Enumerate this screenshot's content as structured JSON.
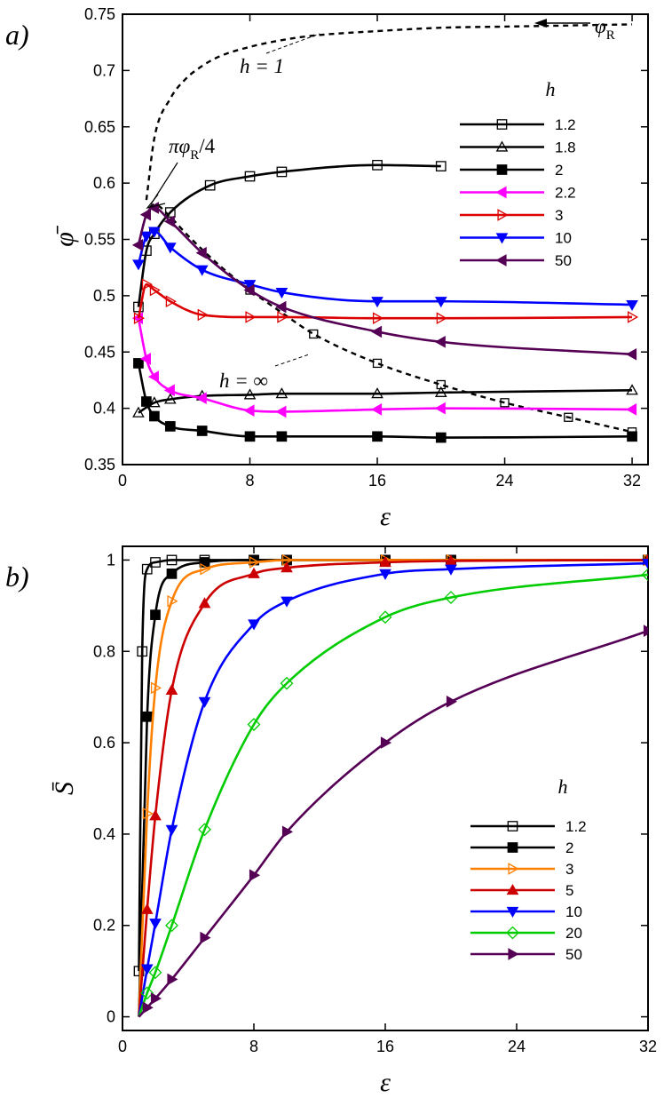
{
  "chart_data": [
    {
      "type": "line",
      "panel_label": "a)",
      "xlabel": "ε",
      "ylabel": "φ̄",
      "xlim": [
        0,
        33
      ],
      "ylim": [
        0.35,
        0.75
      ],
      "xticks": [
        0,
        8,
        16,
        24,
        32
      ],
      "xtick_labels": [
        "0",
        "8",
        "16",
        "24",
        "32"
      ],
      "yticks": [
        0.35,
        0.4,
        0.45,
        0.5,
        0.55,
        0.6,
        0.65,
        0.7,
        0.75
      ],
      "ytick_labels": [
        "0.35",
        "0.4",
        "0.45",
        "0.5",
        "0.55",
        "0.6",
        "0.65",
        "0.7",
        "0.75"
      ],
      "legend_title": "h",
      "legend_position": "top-right",
      "annotations": {
        "phi_r": "φ",
        "phi_r_sub": "R",
        "h_one": "h = 1",
        "h_inf": "h = ∞",
        "pi_phi_r": "πφ",
        "pi_phi_r_sub": "R",
        "pi_phi_r_tail": "/4"
      },
      "reference_curves": [
        {
          "name": "h=1",
          "style": "dashed",
          "x": [
            1.5,
            2,
            3,
            4,
            5,
            6,
            8,
            10,
            12,
            16,
            20,
            24,
            28,
            32
          ],
          "y": [
            0.585,
            0.64,
            0.675,
            0.693,
            0.704,
            0.712,
            0.721,
            0.727,
            0.731,
            0.735,
            0.738,
            0.739,
            0.74,
            0.741
          ]
        },
        {
          "name": "h=∞",
          "style": "dashed",
          "x": [
            1,
            1.5,
            2,
            3,
            4,
            6,
            8,
            10,
            12,
            16,
            20,
            24,
            28,
            32
          ],
          "y": [
            0.545,
            0.572,
            0.581,
            0.57,
            0.555,
            0.528,
            0.505,
            0.485,
            0.466,
            0.44,
            0.421,
            0.405,
            0.392,
            0.379
          ]
        }
      ],
      "series": [
        {
          "name": "1.2",
          "color": "#000000",
          "marker": "square-open",
          "x": [
            1,
            1.5,
            2,
            3,
            5.5,
            8,
            10,
            16,
            20
          ],
          "y": [
            0.49,
            0.54,
            0.555,
            0.574,
            0.598,
            0.606,
            0.61,
            0.616,
            0.615
          ]
        },
        {
          "name": "1.8",
          "color": "#000000",
          "marker": "triangle-open",
          "x": [
            1,
            2,
            3,
            5,
            8,
            10,
            16,
            20,
            32
          ],
          "y": [
            0.396,
            0.405,
            0.408,
            0.411,
            0.412,
            0.413,
            0.413,
            0.414,
            0.416
          ]
        },
        {
          "name": "2",
          "color": "#000000",
          "marker": "square-filled",
          "x": [
            1,
            1.5,
            2,
            3,
            5,
            8,
            10,
            16,
            20,
            32
          ],
          "y": [
            0.44,
            0.406,
            0.393,
            0.384,
            0.38,
            0.375,
            0.375,
            0.375,
            0.374,
            0.375
          ]
        },
        {
          "name": "2.2",
          "color": "#ff00ff",
          "marker": "triangle-left-filled",
          "x": [
            1,
            1.5,
            2,
            3,
            5,
            8,
            10,
            16,
            20,
            32
          ],
          "y": [
            0.48,
            0.444,
            0.428,
            0.416,
            0.409,
            0.398,
            0.397,
            0.399,
            0.4,
            0.399
          ]
        },
        {
          "name": "3",
          "color": "#dd0000",
          "marker": "triangle-right-open",
          "x": [
            1,
            1.5,
            2,
            3,
            5,
            8,
            10,
            16,
            20,
            32
          ],
          "y": [
            0.48,
            0.51,
            0.505,
            0.495,
            0.483,
            0.481,
            0.481,
            0.48,
            0.48,
            0.481
          ]
        },
        {
          "name": "10",
          "color": "#0000ff",
          "marker": "triangle-down-filled",
          "x": [
            1,
            1.5,
            2,
            3,
            5,
            8,
            10,
            16,
            20,
            32
          ],
          "y": [
            0.528,
            0.553,
            0.557,
            0.543,
            0.523,
            0.51,
            0.503,
            0.495,
            0.495,
            0.492
          ]
        },
        {
          "name": "50",
          "color": "#550055",
          "marker": "triangle-left-filled",
          "x": [
            1,
            1.5,
            2,
            3,
            5,
            8,
            10,
            16,
            20,
            32
          ],
          "y": [
            0.545,
            0.572,
            0.578,
            0.566,
            0.538,
            0.505,
            0.49,
            0.468,
            0.459,
            0.448
          ]
        }
      ]
    },
    {
      "type": "line",
      "panel_label": "b)",
      "xlabel": "ε",
      "ylabel": "S̄",
      "xlim": [
        0,
        32
      ],
      "ylim": [
        -0.03,
        1.03
      ],
      "xticks": [
        0,
        8,
        16,
        24,
        32
      ],
      "xtick_labels": [
        "0",
        "8",
        "16",
        "24",
        "32"
      ],
      "yticks": [
        0,
        0.2,
        0.4,
        0.6,
        0.8,
        1
      ],
      "ytick_labels": [
        "0",
        "0.2",
        "0.4",
        "0.6",
        "0.8",
        "1"
      ],
      "legend_title": "h",
      "legend_position": "bottom-right",
      "series": [
        {
          "name": "1.2",
          "color": "#000000",
          "marker": "square-open",
          "x": [
            1,
            1.2,
            1.5,
            2,
            3,
            5,
            8,
            10,
            16,
            20,
            32
          ],
          "y": [
            0.1,
            0.8,
            0.98,
            0.995,
            1,
            1,
            1,
            1,
            1,
            1,
            1
          ]
        },
        {
          "name": "2",
          "color": "#000000",
          "marker": "square-filled",
          "x": [
            1,
            1.5,
            2,
            3,
            5,
            8,
            10,
            16,
            20,
            32
          ],
          "y": [
            0,
            0.657,
            0.88,
            0.97,
            0.995,
            1,
            1,
            1,
            1,
            1
          ]
        },
        {
          "name": "3",
          "color": "#ff8000",
          "marker": "triangle-right-open",
          "x": [
            1,
            1.5,
            2,
            3,
            5,
            8,
            10,
            16,
            20,
            32
          ],
          "y": [
            0,
            0.445,
            0.72,
            0.91,
            0.98,
            0.995,
            1,
            1,
            1,
            1
          ]
        },
        {
          "name": "5",
          "color": "#cc0000",
          "marker": "triangle-up-filled",
          "x": [
            1,
            1.5,
            2,
            3,
            5,
            8,
            10,
            16,
            20,
            32
          ],
          "y": [
            0,
            0.235,
            0.44,
            0.715,
            0.905,
            0.97,
            0.983,
            0.995,
            0.998,
            1
          ]
        },
        {
          "name": "10",
          "color": "#0000ff",
          "marker": "triangle-down-filled",
          "x": [
            1,
            1.5,
            2,
            3,
            5,
            8,
            10,
            16,
            20,
            32
          ],
          "y": [
            0,
            0.105,
            0.205,
            0.41,
            0.69,
            0.86,
            0.91,
            0.97,
            0.98,
            0.993
          ]
        },
        {
          "name": "20",
          "color": "#00cc00",
          "marker": "diamond-open",
          "x": [
            1,
            1.5,
            2,
            3,
            5,
            8,
            10,
            16,
            20,
            32
          ],
          "y": [
            0,
            0.052,
            0.097,
            0.2,
            0.41,
            0.64,
            0.73,
            0.875,
            0.918,
            0.968
          ]
        },
        {
          "name": "50",
          "color": "#550055",
          "marker": "triangle-right-filled",
          "x": [
            1,
            1.5,
            2,
            3,
            5,
            8,
            10,
            16,
            20,
            32
          ],
          "y": [
            0,
            0.02,
            0.04,
            0.082,
            0.173,
            0.31,
            0.405,
            0.6,
            0.69,
            0.845
          ]
        }
      ]
    }
  ]
}
